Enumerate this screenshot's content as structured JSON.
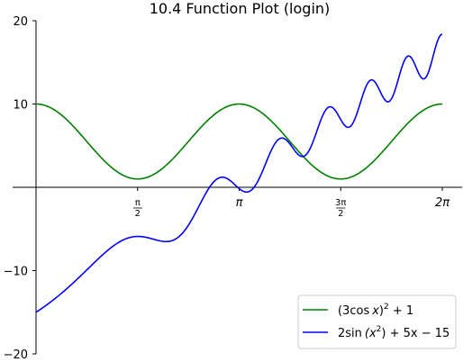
{
  "chart_data": {
    "type": "line",
    "title": "10.4 Function Plot (login)",
    "xlabel": "",
    "ylabel": "",
    "xlim": [
      0,
      6.283185307179586
    ],
    "ylim": [
      -20,
      20
    ],
    "grid": false,
    "legend_position": "lower-right",
    "x_ticks": [
      {
        "value": 1.5707963267948966,
        "label": "π/2",
        "fraction": true,
        "num": "π",
        "den": "2"
      },
      {
        "value": 3.141592653589793,
        "label": "π",
        "fraction": false
      },
      {
        "value": 4.71238898038469,
        "label": "3π/2",
        "fraction": true,
        "num": "3π",
        "den": "2"
      },
      {
        "value": 6.283185307179586,
        "label": "2π",
        "fraction": false
      }
    ],
    "y_ticks": [
      {
        "value": -20,
        "label": "−20"
      },
      {
        "value": -10,
        "label": "−10"
      },
      {
        "value": 10,
        "label": "10"
      },
      {
        "value": 20,
        "label": "20"
      }
    ],
    "series": [
      {
        "name": "(3cos x)² + 1",
        "name_parts": {
          "pre": "(3cos",
          "var": "x",
          "mid": ")",
          "sup": "2",
          "post": " + 1"
        },
        "color": "#008000",
        "function": "(3*cos(x))^2 + 1",
        "samples": [
          [
            0.0,
            10.0
          ],
          [
            0.3142,
            9.14
          ],
          [
            0.6283,
            6.89
          ],
          [
            0.9425,
            4.11
          ],
          [
            1.2566,
            1.86
          ],
          [
            1.5708,
            1.0
          ],
          [
            1.885,
            1.86
          ],
          [
            2.1991,
            4.11
          ],
          [
            2.5133,
            6.89
          ],
          [
            2.8274,
            9.14
          ],
          [
            3.1416,
            10.0
          ],
          [
            3.4558,
            9.14
          ],
          [
            3.7699,
            6.89
          ],
          [
            4.0841,
            4.11
          ],
          [
            4.3982,
            1.86
          ],
          [
            4.7124,
            1.0
          ],
          [
            5.0265,
            1.86
          ],
          [
            5.3407,
            4.11
          ],
          [
            5.6549,
            6.89
          ],
          [
            5.969,
            9.14
          ],
          [
            6.2832,
            10.0
          ]
        ]
      },
      {
        "name": "2sin(x²) + 5x − 15",
        "name_parts": {
          "pre": "2sin",
          "var": "(x",
          "mid": "",
          "sup": "2",
          "post": ") + 5x − 15"
        },
        "color": "#0000ff",
        "function": "2*sin(x^2) + 5*x - 15",
        "samples": [
          [
            0.0,
            -15.0
          ],
          [
            0.3142,
            -13.23
          ],
          [
            0.6283,
            -11.1
          ],
          [
            0.9425,
            -8.72
          ],
          [
            1.2566,
            -6.37
          ],
          [
            1.5708,
            -5.91
          ],
          [
            1.885,
            -6.48
          ],
          [
            2.1991,
            -3.97
          ],
          [
            2.5133,
            0.12
          ],
          [
            2.8274,
            0.0
          ],
          [
            3.1416,
            1.29
          ],
          [
            3.4558,
            3.74
          ],
          [
            3.7699,
            5.15
          ],
          [
            4.0841,
            4.59
          ],
          [
            4.3982,
            8.81
          ],
          [
            4.7124,
            7.69
          ],
          [
            5.0265,
            11.6
          ],
          [
            5.3407,
            12.7
          ],
          [
            5.6549,
            13.46
          ],
          [
            5.969,
            15.06
          ],
          [
            6.2832,
            17.16
          ]
        ]
      }
    ]
  }
}
